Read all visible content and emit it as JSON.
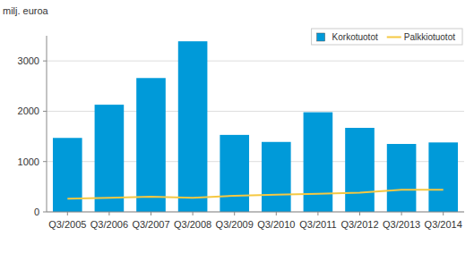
{
  "chart_data": {
    "type": "bar",
    "y_label": "milj. euroa",
    "categories": [
      "Q3/2005",
      "Q3/2006",
      "Q3/2007",
      "Q3/2008",
      "Q3/2009",
      "Q3/2010",
      "Q3/2011",
      "Q3/2012",
      "Q3/2013",
      "Q3/2014"
    ],
    "series": [
      {
        "name": "Korkotuotot",
        "type": "bar",
        "color": "#009ad9",
        "values": [
          1470,
          2130,
          2660,
          3390,
          1530,
          1390,
          1980,
          1670,
          1350,
          1380
        ]
      },
      {
        "name": "Palkkiotuotot",
        "type": "line",
        "color": "#f5c842",
        "values": [
          260,
          280,
          300,
          280,
          320,
          340,
          360,
          380,
          440,
          440
        ]
      }
    ],
    "ylim": [
      0,
      3500
    ],
    "yticks": [
      0,
      1000,
      2000,
      3000
    ],
    "grid": true,
    "legend": "upper right"
  }
}
